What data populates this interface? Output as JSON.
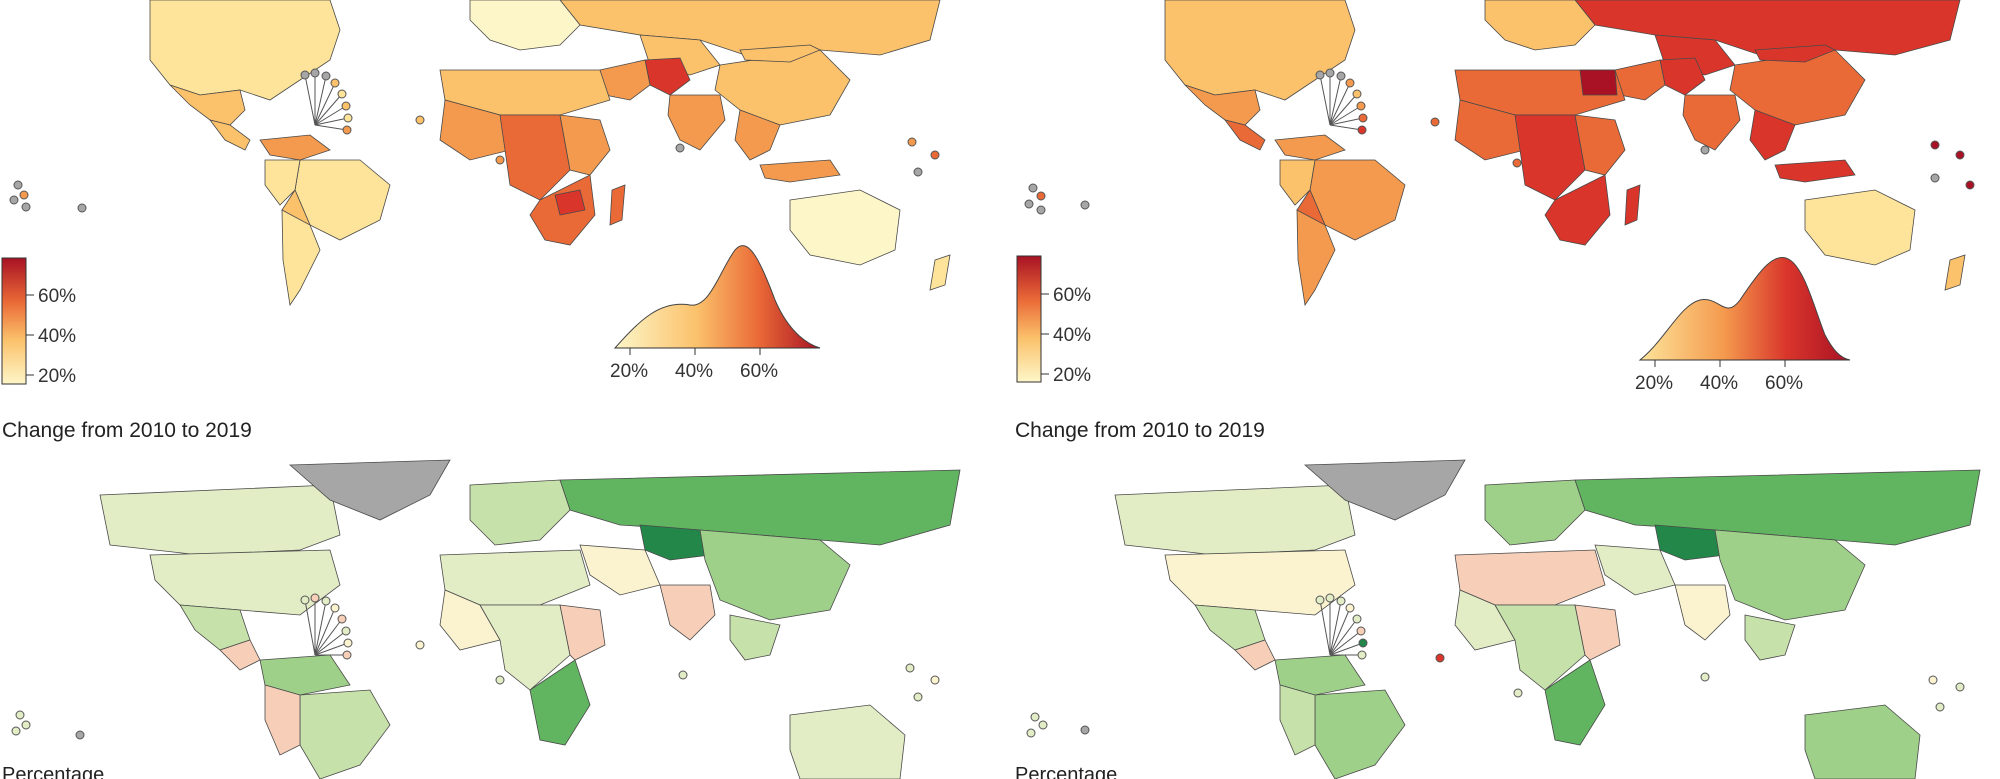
{
  "colors": {
    "level_scale": [
      "#fdf6c8",
      "#fde49a",
      "#fbc16b",
      "#f49a4e",
      "#ea6a37",
      "#d9352b",
      "#a81224"
    ],
    "change_scale": [
      "#f7cfb8",
      "#fbf3cf",
      "#e2edc6",
      "#c6e1a9",
      "#9ed08a",
      "#61b561",
      "#24874a"
    ],
    "missing": "#a6a6a6",
    "greenland": "#a6a6a6"
  },
  "panels": [
    {
      "id": "left",
      "legend_ticks": [
        "60%",
        "40%",
        "20%"
      ],
      "density_ticks": [
        "20%",
        "40%",
        "60%"
      ],
      "change_title": "Change from 2010 to 2019",
      "cutoff_label": "Percentage"
    },
    {
      "id": "right",
      "legend_ticks": [
        "60%",
        "40%",
        "20%"
      ],
      "density_ticks": [
        "20%",
        "40%",
        "60%"
      ],
      "change_title": "Change from 2010 to 2019",
      "cutoff_label": "Percentage"
    }
  ]
}
